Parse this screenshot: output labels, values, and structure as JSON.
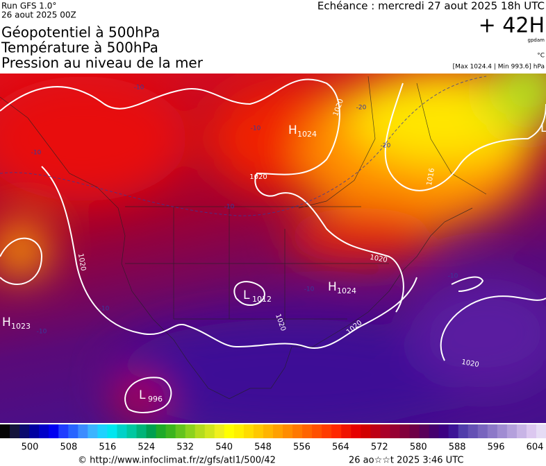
{
  "header": {
    "run": "Run GFS 1.0°",
    "run_date": "26 aout 2025 00Z",
    "titles": [
      "Géopotentiel à 500hPa",
      "Température à 500hPa",
      "Pression au niveau de la mer"
    ],
    "valid_time": "Echéance : mercredi 27 aout 2025 18h UTC",
    "lead": "+ 42H",
    "unit_geopotential": "gpdam",
    "unit_temperature": "°C",
    "pressure_range": "[Max 1024.4 | Min 993.6] hPa"
  },
  "map": {
    "pressure_centers": [
      {
        "type": "H",
        "value": 1024
      },
      {
        "type": "H",
        "value": 1024
      },
      {
        "type": "L",
        "value": 1012
      },
      {
        "type": "H",
        "value": 1023
      },
      {
        "type": "L",
        "value": 996
      },
      {
        "type": "L"
      }
    ],
    "isobar_labels": [
      1020,
      1020,
      1020,
      1020,
      1020,
      1020,
      1020,
      1016
    ],
    "temperature_labels": [
      -10,
      -10,
      -10,
      -10,
      -10,
      -10,
      -10,
      -10,
      -20,
      -20
    ]
  },
  "colorbar": {
    "ticks": [
      500,
      508,
      516,
      524,
      532,
      540,
      548,
      556,
      564,
      572,
      580,
      588,
      596,
      604
    ],
    "colors": [
      "#050505",
      "#14143c",
      "#0a0a6e",
      "#0000a0",
      "#0000c8",
      "#0000f0",
      "#1e3cff",
      "#2864ff",
      "#3c8cff",
      "#3cb4ff",
      "#1ed2ff",
      "#00e6f0",
      "#00d2c8",
      "#00c8a0",
      "#00b478",
      "#00a050",
      "#1eaa28",
      "#3cb41e",
      "#64c31e",
      "#8cd21e",
      "#b4dc1e",
      "#d2e61e",
      "#f0f01e",
      "#ffff00",
      "#fff000",
      "#ffdc00",
      "#ffc800",
      "#ffb400",
      "#ffa000",
      "#ff8c00",
      "#ff7800",
      "#ff6400",
      "#ff5000",
      "#ff3c00",
      "#ff2800",
      "#f01400",
      "#e60000",
      "#d20000",
      "#be0014",
      "#aa0028",
      "#960032",
      "#82003c",
      "#6e0046",
      "#5a005a",
      "#46006e",
      "#3c0082",
      "#3c1496",
      "#503caa",
      "#6450b4",
      "#7864be",
      "#8c78c8",
      "#a08cd2",
      "#b4a0dc",
      "#c8b4e6",
      "#dcc8f0",
      "#e6dcf5"
    ]
  },
  "footer": {
    "source": "© http://www.infoclimat.fr/z/gfs/atl1/500/42",
    "generated": "26 ao☆☆t 2025  3:46 UTC"
  }
}
